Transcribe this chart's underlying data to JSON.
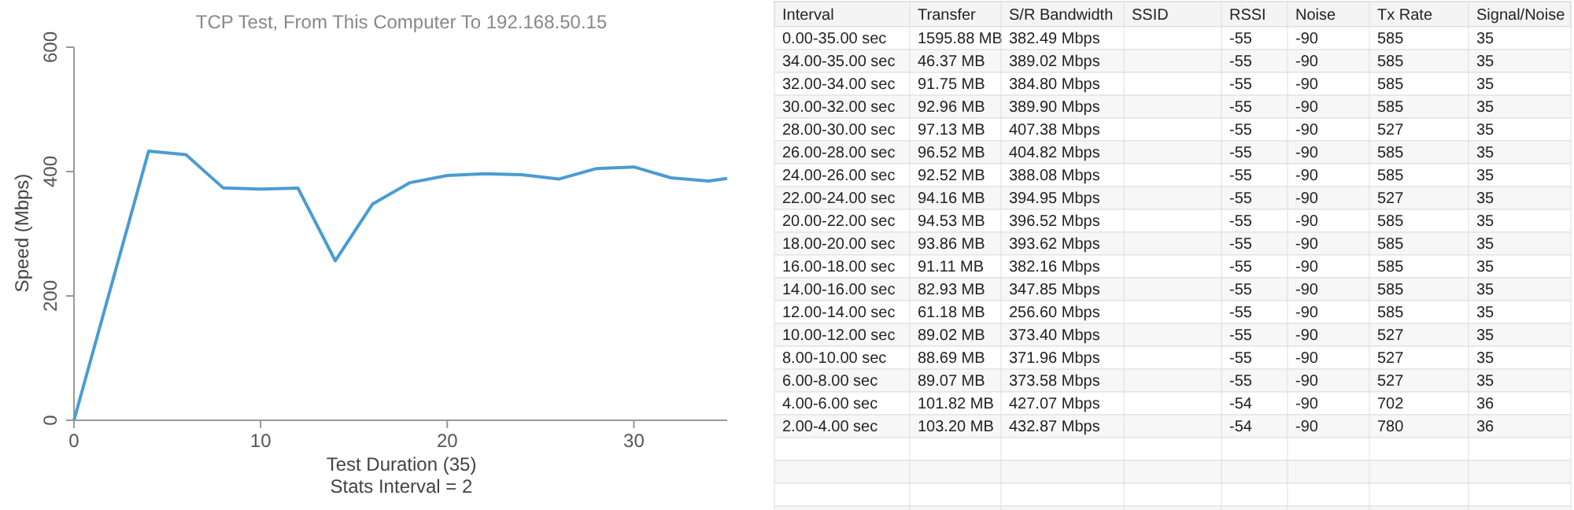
{
  "chart_data": [
    {
      "type": "line",
      "title": "TCP Test,  From This Computer To 192.168.50.15",
      "xlabel": "Test Duration (35)",
      "ylabel": "Speed (Mbps)",
      "annotations": [
        "Stats Interval = 2"
      ],
      "x": [
        0,
        4,
        6,
        8,
        10,
        12,
        14,
        16,
        18,
        20,
        22,
        24,
        26,
        28,
        30,
        32,
        34,
        35
      ],
      "series": [
        {
          "color": "#4a9cd2",
          "values": [
            0,
            432.87,
            427.07,
            373.58,
            371.96,
            373.4,
            256.6,
            347.85,
            382.16,
            393.62,
            396.52,
            394.95,
            388.08,
            404.82,
            407.38,
            389.9,
            384.8,
            389.02
          ]
        }
      ],
      "xlim": [
        0,
        35
      ],
      "xticks": [
        0,
        10,
        20,
        30
      ],
      "ylim": [
        0,
        600
      ],
      "yticks": [
        0,
        200,
        400,
        600
      ],
      "grid": false,
      "marker": "none",
      "line_style": "solid"
    },
    {
      "type": "heatmap",
      "ylabel": "Interval",
      "categories": [
        "Transfer",
        "S/R Bandwidth",
        "SSID",
        "RSSI",
        "Noise",
        "Tx Rate",
        "Signal/Noise"
      ],
      "y_categories": [
        "0.00-35.00 sec",
        "34.00-35.00 sec",
        "32.00-34.00 sec",
        "30.00-32.00 sec",
        "28.00-30.00 sec",
        "26.00-28.00 sec",
        "24.00-26.00 sec",
        "22.00-24.00 sec",
        "20.00-22.00 sec",
        "18.00-20.00 sec",
        "16.00-18.00 sec",
        "14.00-16.00 sec",
        "12.00-14.00 sec",
        "10.00-12.00 sec",
        "8.00-10.00 sec",
        "6.00-8.00 sec",
        "4.00-6.00 sec",
        "2.00-4.00 sec"
      ],
      "cells": [
        [
          null,
          null,
          null,
          null,
          null,
          null,
          null
        ],
        [
          null,
          null,
          null,
          null,
          null,
          null,
          null
        ],
        [
          null,
          null,
          null,
          null,
          null,
          null,
          null
        ],
        [
          null,
          null,
          null,
          null,
          null,
          null,
          null
        ],
        [
          null,
          null,
          null,
          null,
          null,
          null,
          null
        ],
        [
          null,
          null,
          null,
          null,
          null,
          null,
          null
        ],
        [
          null,
          null,
          null,
          null,
          null,
          null,
          null
        ],
        [
          null,
          null,
          null,
          null,
          null,
          null,
          null
        ],
        [
          null,
          null,
          null,
          null,
          null,
          null,
          null
        ],
        [
          null,
          null,
          null,
          null,
          null,
          null,
          null
        ],
        [
          null,
          null,
          null,
          null,
          null,
          null,
          null
        ],
        [
          null,
          null,
          null,
          null,
          null,
          null,
          null
        ],
        [
          null,
          null,
          null,
          null,
          null,
          null,
          null
        ],
        [
          null,
          null,
          null,
          null,
          null,
          null,
          null
        ],
        [
          null,
          null,
          null,
          null,
          null,
          null,
          null
        ],
        [
          null,
          null,
          null,
          null,
          null,
          null,
          null
        ],
        [
          null,
          null,
          null,
          null,
          null,
          null,
          null
        ],
        [
          null,
          null,
          null,
          null,
          null,
          null,
          null
        ]
      ],
      "cell_labels": [
        [
          "1595.88 MB",
          "382.49 Mbps",
          null,
          "-55",
          "-90",
          "585",
          "35"
        ],
        [
          "46.37 MB",
          "389.02 Mbps",
          null,
          "-55",
          "-90",
          "585",
          "35"
        ],
        [
          "91.75 MB",
          "384.80 Mbps",
          null,
          "-55",
          "-90",
          "585",
          "35"
        ],
        [
          "92.96 MB",
          "389.90 Mbps",
          null,
          "-55",
          "-90",
          "585",
          "35"
        ],
        [
          "97.13 MB",
          "407.38 Mbps",
          null,
          "-55",
          "-90",
          "527",
          "35"
        ],
        [
          "96.52 MB",
          "404.82 Mbps",
          null,
          "-55",
          "-90",
          "585",
          "35"
        ],
        [
          "92.52 MB",
          "388.08 Mbps",
          null,
          "-55",
          "-90",
          "585",
          "35"
        ],
        [
          "94.16 MB",
          "394.95 Mbps",
          null,
          "-55",
          "-90",
          "527",
          "35"
        ],
        [
          "94.53 MB",
          "396.52 Mbps",
          null,
          "-55",
          "-90",
          "585",
          "35"
        ],
        [
          "93.86 MB",
          "393.62 Mbps",
          null,
          "-55",
          "-90",
          "585",
          "35"
        ],
        [
          "91.11 MB",
          "382.16 Mbps",
          null,
          "-55",
          "-90",
          "585",
          "35"
        ],
        [
          "82.93 MB",
          "347.85 Mbps",
          null,
          "-55",
          "-90",
          "585",
          "35"
        ],
        [
          "61.18 MB",
          "256.60 Mbps",
          null,
          "-55",
          "-90",
          "585",
          "35"
        ],
        [
          "89.02 MB",
          "373.40 Mbps",
          null,
          "-55",
          "-90",
          "527",
          "35"
        ],
        [
          "88.69 MB",
          "371.96 Mbps",
          null,
          "-55",
          "-90",
          "527",
          "35"
        ],
        [
          "89.07 MB",
          "373.58 Mbps",
          null,
          "-55",
          "-90",
          "527",
          "35"
        ],
        [
          "101.82 MB",
          "427.07 Mbps",
          null,
          "-54",
          "-90",
          "702",
          "36"
        ],
        [
          "103.20 MB",
          "432.87 Mbps",
          null,
          "-54",
          "-90",
          "780",
          "36"
        ]
      ]
    }
  ]
}
